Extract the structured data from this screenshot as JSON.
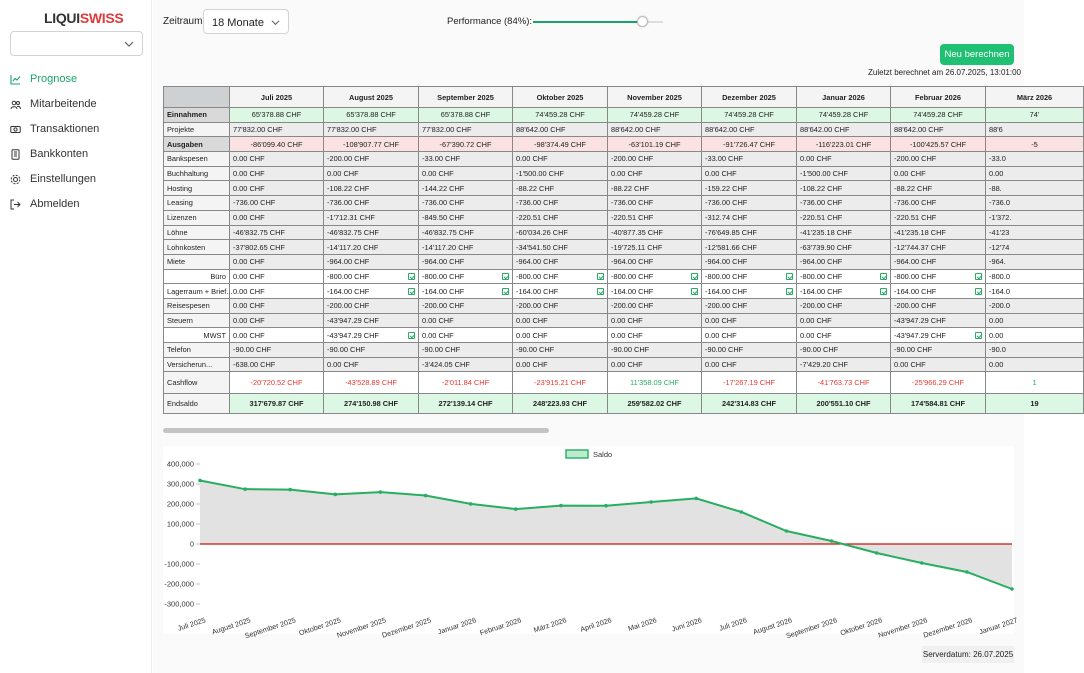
{
  "logo": {
    "part1": "LIQUI",
    "part2": "SWISS"
  },
  "company_select": {
    "value": ""
  },
  "nav": [
    {
      "label": "Prognose",
      "icon": "chart-line-icon",
      "active": true
    },
    {
      "label": "Mitarbeitende",
      "icon": "users-icon",
      "active": false
    },
    {
      "label": "Transaktionen",
      "icon": "money-icon",
      "active": false
    },
    {
      "label": "Bankkonten",
      "icon": "bank-icon",
      "active": false
    },
    {
      "label": "Einstellungen",
      "icon": "gear-icon",
      "active": false
    },
    {
      "label": "Abmelden",
      "icon": "logout-icon",
      "active": false
    }
  ],
  "toolbar": {
    "zeitraum_label": "Zeitraum:",
    "zeitraum_value": "18 Monate",
    "performance_label": "Performance (84%):",
    "performance_value": 84,
    "recalc_label": "Neu berechnen",
    "last_calc": "Zuletzt berechnet am 26.07.2025, 13:01:00"
  },
  "table": {
    "months": [
      "Juli 2025",
      "August 2025",
      "September 2025",
      "Oktober 2025",
      "November 2025",
      "Dezember 2025",
      "Januar 2026",
      "Februar 2026",
      "März 2026"
    ],
    "rows": [
      {
        "type": "einn",
        "label": "Einnahmen",
        "values": [
          "65'378.88 CHF",
          "65'378.88 CHF",
          "65'378.88 CHF",
          "74'459.28 CHF",
          "74'459.28 CHF",
          "74'459.28 CHF",
          "74'459.28 CHF",
          "74'459.28 CHF",
          "74'"
        ]
      },
      {
        "type": "gray",
        "label": "Projekte",
        "values": [
          "77'832.00 CHF",
          "77'832.00 CHF",
          "77'832.00 CHF",
          "88'642.00 CHF",
          "88'642.00 CHF",
          "88'642.00 CHF",
          "88'642.00 CHF",
          "88'642.00 CHF",
          "88'6"
        ]
      },
      {
        "type": "ausg",
        "label": "Ausgaben",
        "values": [
          "-86'099.40 CHF",
          "-108'907.77 CHF",
          "-67'390.72 CHF",
          "-98'374.49 CHF",
          "-63'101.19 CHF",
          "-91'726.47 CHF",
          "-116'223.01 CHF",
          "-100'425.57 CHF",
          "-5"
        ]
      },
      {
        "type": "gray",
        "label": "Bankspesen",
        "values": [
          "0.00 CHF",
          "-200.00 CHF",
          "-33.00 CHF",
          "0.00 CHF",
          "-200.00 CHF",
          "-33.00 CHF",
          "0.00 CHF",
          "-200.00 CHF",
          "-33.0"
        ]
      },
      {
        "type": "gray",
        "label": "Buchhaltung",
        "values": [
          "0.00 CHF",
          "0.00 CHF",
          "0.00 CHF",
          "-1'500.00 CHF",
          "0.00 CHF",
          "0.00 CHF",
          "-1'500.00 CHF",
          "0.00 CHF",
          "0.00"
        ]
      },
      {
        "type": "gray",
        "label": "Hosting",
        "values": [
          "0.00 CHF",
          "-108.22 CHF",
          "-144.22 CHF",
          "-88.22 CHF",
          "-88.22 CHF",
          "-159.22 CHF",
          "-108.22 CHF",
          "-88.22 CHF",
          "-88."
        ]
      },
      {
        "type": "gray",
        "label": "Leasing",
        "values": [
          "-736.00 CHF",
          "-736.00 CHF",
          "-736.00 CHF",
          "-736.00 CHF",
          "-736.00 CHF",
          "-736.00 CHF",
          "-736.00 CHF",
          "-736.00 CHF",
          "-736.0"
        ]
      },
      {
        "type": "gray",
        "label": "Lizenzen",
        "values": [
          "0.00 CHF",
          "-1'712.31 CHF",
          "-849.50 CHF",
          "-220.51 CHF",
          "-220.51 CHF",
          "-312.74 CHF",
          "-220.51 CHF",
          "-220.51 CHF",
          "-1'372."
        ]
      },
      {
        "type": "gray",
        "label": "Löhne",
        "values": [
          "-46'832.75 CHF",
          "-46'832.75 CHF",
          "-46'832.75 CHF",
          "-60'034.26 CHF",
          "-40'877.35 CHF",
          "-76'649.85 CHF",
          "-41'235.18 CHF",
          "-41'235.18 CHF",
          "-41'23"
        ]
      },
      {
        "type": "gray",
        "label": "Lohnkosten",
        "values": [
          "-37'802.65 CHF",
          "-14'117.20 CHF",
          "-14'117.20 CHF",
          "-34'541.50 CHF",
          "-19'725.11 CHF",
          "-12'581.66 CHF",
          "-63'739.90 CHF",
          "-12'744.37 CHF",
          "-12'74"
        ]
      },
      {
        "type": "gray",
        "label": "Miete",
        "values": [
          "0.00 CHF",
          "-964.00 CHF",
          "-964.00 CHF",
          "-964.00 CHF",
          "-964.00 CHF",
          "-964.00 CHF",
          "-964.00 CHF",
          "-964.00 CHF",
          "-964."
        ]
      },
      {
        "type": "sub",
        "label": "Büro",
        "values": [
          "0.00 CHF",
          "-800.00 CHF",
          "-800.00 CHF",
          "-800.00 CHF",
          "-800.00 CHF",
          "-800.00 CHF",
          "-800.00 CHF",
          "-800.00 CHF",
          "-800.0"
        ],
        "checks": [
          false,
          true,
          true,
          true,
          true,
          true,
          true,
          true,
          false
        ]
      },
      {
        "type": "sub",
        "label": "Lagerraum + Brief...",
        "values": [
          "0.00 CHF",
          "-164.00 CHF",
          "-164.00 CHF",
          "-164.00 CHF",
          "-164.00 CHF",
          "-164.00 CHF",
          "-164.00 CHF",
          "-164.00 CHF",
          "-164.0"
        ],
        "checks": [
          false,
          true,
          true,
          true,
          true,
          true,
          true,
          true,
          false
        ]
      },
      {
        "type": "gray",
        "label": "Reisespesen",
        "values": [
          "0.00 CHF",
          "-200.00 CHF",
          "-200.00 CHF",
          "-200.00 CHF",
          "-200.00 CHF",
          "-200.00 CHF",
          "-200.00 CHF",
          "-200.00 CHF",
          "-200.0"
        ]
      },
      {
        "type": "gray",
        "label": "Steuern",
        "values": [
          "0.00 CHF",
          "-43'947.29 CHF",
          "0.00 CHF",
          "0.00 CHF",
          "0.00 CHF",
          "0.00 CHF",
          "0.00 CHF",
          "-43'947.29 CHF",
          "0.00"
        ]
      },
      {
        "type": "sub",
        "label": "MWST",
        "values": [
          "0.00 CHF",
          "-43'947.29 CHF",
          "0.00 CHF",
          "0.00 CHF",
          "0.00 CHF",
          "0.00 CHF",
          "0.00 CHF",
          "-43'947.29 CHF",
          "0.00"
        ],
        "checks": [
          false,
          true,
          false,
          false,
          false,
          false,
          false,
          true,
          false
        ]
      },
      {
        "type": "gray",
        "label": "Telefon",
        "values": [
          "-90.00 CHF",
          "-90.00 CHF",
          "-90.00 CHF",
          "-90.00 CHF",
          "-90.00 CHF",
          "-90.00 CHF",
          "-90.00 CHF",
          "-90.00 CHF",
          "-90.0"
        ]
      },
      {
        "type": "gray",
        "label": "Versicherun...",
        "values": [
          "-638.00 CHF",
          "0.00 CHF",
          "-3'424.05 CHF",
          "0.00 CHF",
          "0.00 CHF",
          "0.00 CHF",
          "-7'429.20 CHF",
          "0.00 CHF",
          "0.00"
        ]
      },
      {
        "type": "cash",
        "label": "Cashflow",
        "values": [
          "-20'720.52 CHF",
          "-43'528.89 CHF",
          "-2'011.84 CHF",
          "-23'915.21 CHF",
          "11'358.09 CHF",
          "-17'267.19 CHF",
          "-41'763.73 CHF",
          "-25'966.29 CHF",
          "1"
        ],
        "signs": [
          "neg",
          "neg",
          "neg",
          "neg",
          "pos",
          "neg",
          "neg",
          "neg",
          "pos"
        ]
      },
      {
        "type": "end",
        "label": "Endsaldo",
        "values": [
          "317'679.87 CHF",
          "274'150.98 CHF",
          "272'139.14 CHF",
          "248'223.93 CHF",
          "259'582.02 CHF",
          "242'314.83 CHF",
          "200'551.10 CHF",
          "174'584.81 CHF",
          "19"
        ]
      }
    ]
  },
  "chart_data": {
    "type": "area",
    "series": [
      {
        "name": "Saldo",
        "values": [
          317680,
          274151,
          272139,
          248224,
          259582,
          242315,
          200551,
          174585,
          192000,
          191500,
          210000,
          228000,
          160000,
          65000,
          15000,
          -45000,
          -95000,
          -140000,
          -225000
        ]
      }
    ],
    "x": [
      "Juli 2025",
      "August 2025",
      "September 2025",
      "Oktober 2025",
      "November 2025",
      "Dezember 2025",
      "Januar 2026",
      "Februar 2026",
      "März 2026",
      "April 2026",
      "Mai 2026",
      "Juni 2026",
      "Juli 2026",
      "August 2026",
      "September 2026",
      "Oktober 2026",
      "November 2026",
      "Dezember 2026",
      "Januar 2027"
    ],
    "yticks": [
      "400,000",
      "300,000",
      "200,000",
      "100,000",
      "0",
      "-100,000",
      "-200,000",
      "-300,000"
    ],
    "ylim": [
      -300000,
      400000
    ],
    "legend": "top-center",
    "colors": {
      "line": "#27ae60",
      "fill": "#e2e2e2",
      "zero": "#cc1111"
    }
  },
  "server_date": "Serverdatum: 26.07.2025"
}
